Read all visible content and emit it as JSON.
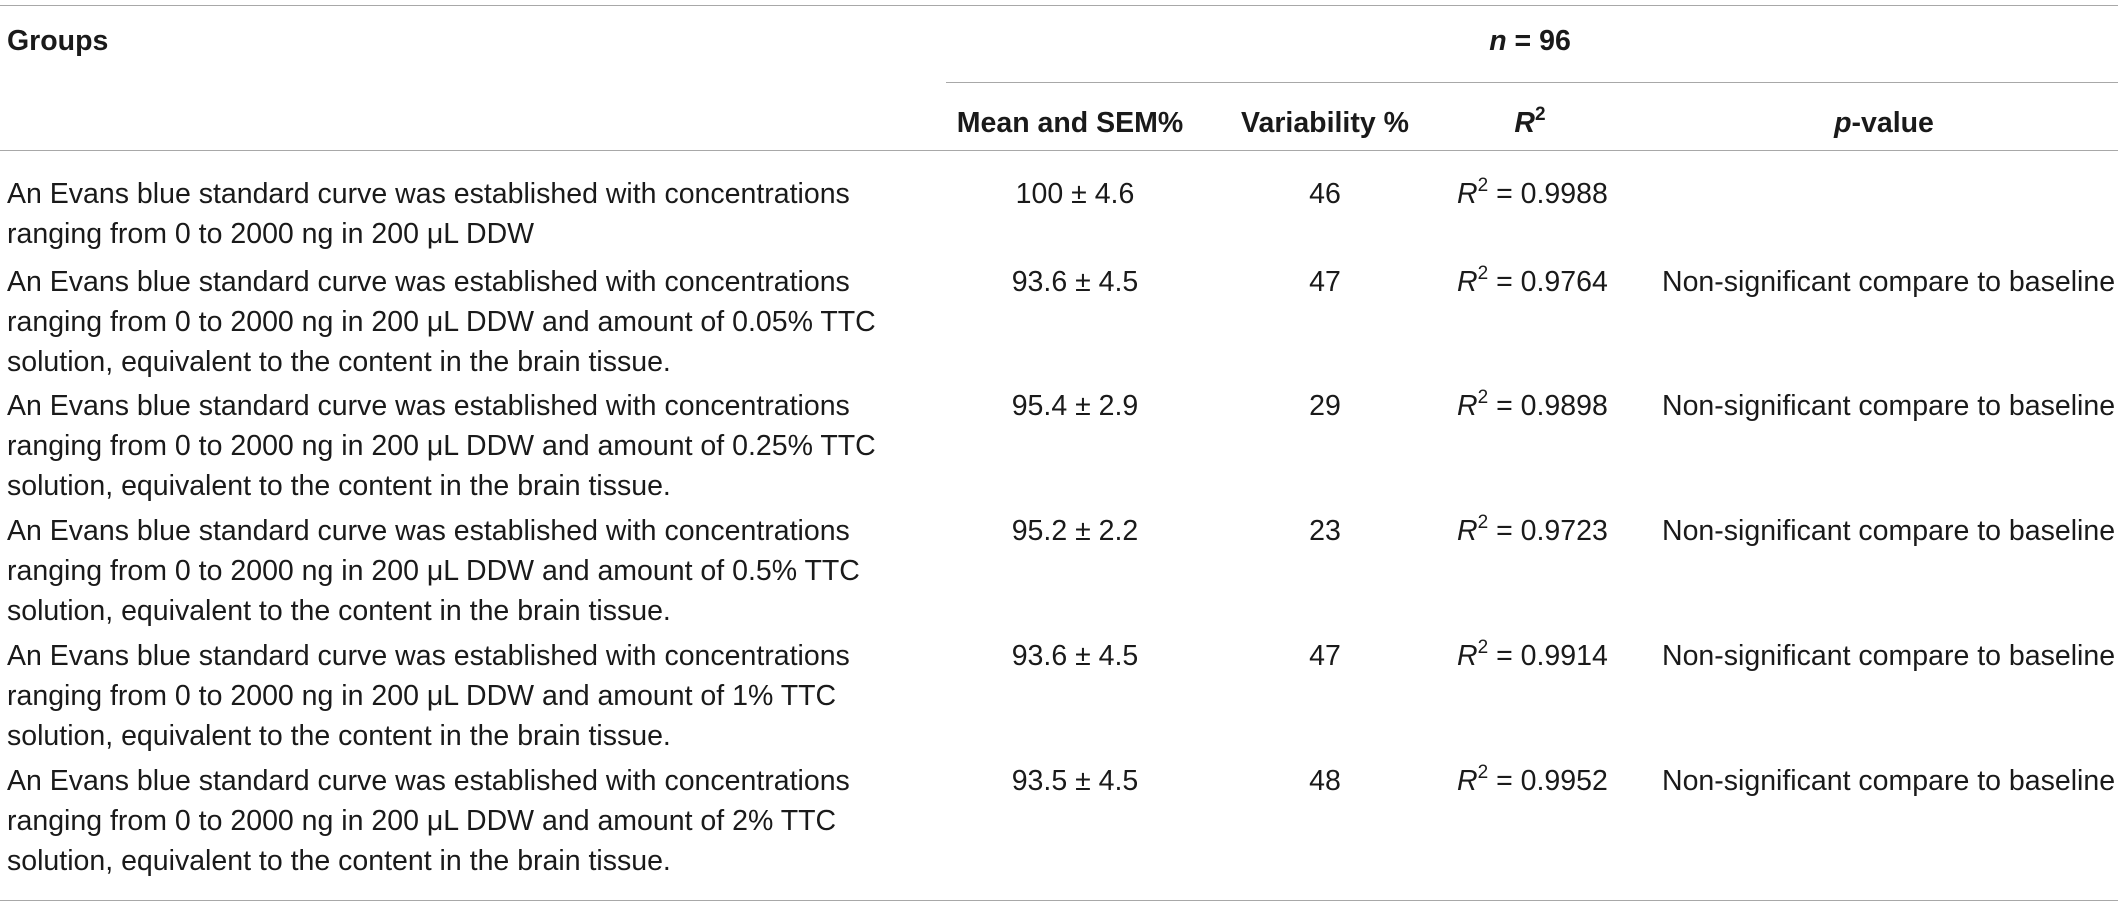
{
  "table": {
    "header": {
      "groups_label": "Groups",
      "n_label_var": "n",
      "n_label_rest": " = 96",
      "columns": {
        "mean_sem": "Mean and SEM%",
        "variability": "Variability %",
        "r2_var": "R",
        "r2_sup": "2",
        "pvalue_var": "p",
        "pvalue_rest": "-value"
      }
    },
    "rows": [
      {
        "group": "An Evans blue standard curve was established with concentrations ranging from 0 to 2000 ng in 200 μL DDW",
        "mean_sem": "100 ± 4.6",
        "variability": "46",
        "r2_var": "R",
        "r2_sup": "2",
        "r2_value": " = 0.9988",
        "pvalue": ""
      },
      {
        "group": "An Evans blue standard curve was established with concentrations ranging from 0 to 2000 ng in 200 μL DDW and amount of 0.05% TTC solution, equivalent to the content in the brain tissue.",
        "mean_sem": "93.6 ± 4.5",
        "variability": "47",
        "r2_var": "R",
        "r2_sup": "2",
        "r2_value": " = 0.9764",
        "pvalue": "Non-significant compare to baseline"
      },
      {
        "group": "An Evans blue standard curve was established with concentrations ranging from 0 to 2000 ng in 200 μL DDW and amount of 0.25% TTC solution, equivalent to the content in the brain tissue.",
        "mean_sem": "95.4 ± 2.9",
        "variability": "29",
        "r2_var": "R",
        "r2_sup": "2",
        "r2_value": " = 0.9898",
        "pvalue": "Non-significant compare to baseline"
      },
      {
        "group": "An Evans blue standard curve was established with concentrations ranging from 0 to 2000 ng in 200 μL DDW and amount of 0.5% TTC solution, equivalent to the content in the brain tissue.",
        "mean_sem": "95.2 ± 2.2",
        "variability": "23",
        "r2_var": "R",
        "r2_sup": "2",
        "r2_value": " = 0.9723",
        "pvalue": "Non-significant compare to baseline"
      },
      {
        "group": "An Evans blue standard curve was established with concentrations ranging from 0 to 2000 ng in 200 μL DDW and amount of 1% TTC solution, equivalent to the content in the brain tissue.",
        "mean_sem": "93.6 ± 4.5",
        "variability": "47",
        "r2_var": "R",
        "r2_sup": "2",
        "r2_value": " = 0.9914",
        "pvalue": "Non-significant compare to baseline"
      },
      {
        "group": "An Evans blue standard curve was established with concentrations ranging from 0 to 2000 ng in 200 μL DDW and amount of 2% TTC solution, equivalent to the content in the brain tissue.",
        "mean_sem": "93.5 ± 4.5",
        "variability": "48",
        "r2_var": "R",
        "r2_sup": "2",
        "r2_value": " = 0.9952",
        "pvalue": "Non-significant compare to baseline"
      }
    ]
  }
}
